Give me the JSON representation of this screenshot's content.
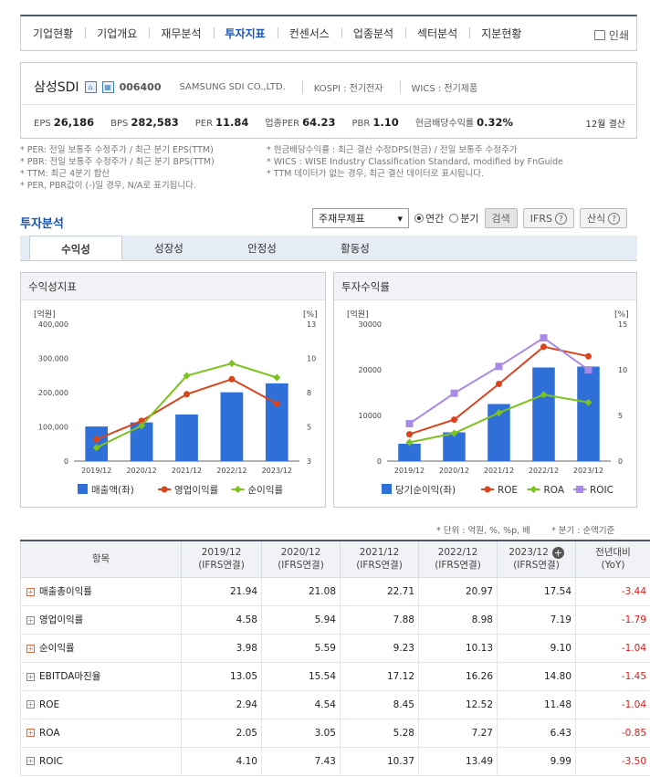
{
  "nav": {
    "items": [
      "기업현황",
      "기업개요",
      "재무분석",
      "투자지표",
      "컨센서스",
      "업종분석",
      "섹터분석",
      "지분현황"
    ],
    "active_index": 3,
    "print_label": "인쇄"
  },
  "company": {
    "name": "삼성SDI",
    "code": "006400",
    "english_name": "SAMSUNG SDI CO.,LTD.",
    "market": "KOSPI : 전기전자",
    "wics": "WICS : 전기제품",
    "metrics": [
      {
        "label": "EPS",
        "value": "26,186"
      },
      {
        "label": "BPS",
        "value": "282,583"
      },
      {
        "label": "PER",
        "value": "11.84"
      },
      {
        "label": "업종PER",
        "value": "64.23"
      },
      {
        "label": "PBR",
        "value": "1.10"
      },
      {
        "label": "현금배당수익률",
        "value": "0.32%"
      }
    ],
    "settlement": "12월 결산"
  },
  "notes_left": [
    "* PER: 전일 보통주 수정주가 / 최근 분기 EPS(TTM)",
    "* PBR: 전일 보통주 수정주가 / 최근 분기 BPS(TTM)",
    "* TTM: 최근 4분기 합산",
    "* PER, PBR값이 (-)일 경우, N/A로 표기됩니다."
  ],
  "notes_right": [
    "* 현금배당수익률 : 최근 결산 수정DPS(현금) / 전일 보통주 수정주가",
    "* WICS : WISE Industry Classification Standard, modified by FnGuide",
    "* TTM 데이터가 없는 경우, 최근 결산 데이터로 표시됩니다."
  ],
  "section_title": "투자분석",
  "controls": {
    "select_value": "주재무제표",
    "radio_annual": "연간",
    "radio_quarter": "분기",
    "search": "검색",
    "ifrs": "IFRS",
    "formula": "산식"
  },
  "tabs": [
    "수익성",
    "성장성",
    "안정성",
    "활동성"
  ],
  "chart_data": [
    {
      "type": "bar",
      "title": "수익성지표",
      "categories": [
        "2019/12",
        "2020/12",
        "2021/12",
        "2022/12",
        "2023/12"
      ],
      "y_left_label": "[억원]",
      "y_right_label": "[%]",
      "y_left_ticks": [
        "0",
        "100,000",
        "200,000",
        "300,000",
        "400,000"
      ],
      "y_right_ticks": [
        "3",
        "5",
        "8",
        "10",
        "13"
      ],
      "y_left_range": [
        0,
        400000
      ],
      "y_right_range": [
        3,
        13
      ],
      "bars": {
        "name": "매출액(좌)",
        "color": "#2f6fd8",
        "values": [
          101000,
          113000,
          136000,
          201000,
          227000
        ]
      },
      "lines": [
        {
          "name": "영업이익률",
          "color": "#d9441f",
          "values": [
            4.58,
            5.94,
            7.88,
            8.98,
            7.19
          ]
        },
        {
          "name": "순이익률",
          "color": "#7dc21e",
          "values": [
            3.98,
            5.59,
            9.23,
            10.13,
            9.1
          ]
        }
      ]
    },
    {
      "type": "bar",
      "title": "투자수익률",
      "categories": [
        "2019/12",
        "2020/12",
        "2021/12",
        "2022/12",
        "2023/12"
      ],
      "y_left_label": "[억원]",
      "y_right_label": "[%]",
      "y_left_ticks": [
        "0",
        "10000",
        "20000",
        "30000"
      ],
      "y_right_ticks": [
        "0",
        "5",
        "10",
        "15"
      ],
      "y_left_range": [
        0,
        30000
      ],
      "y_right_range": [
        0,
        15
      ],
      "bars": {
        "name": "당기순이익(좌)",
        "color": "#2f6fd8",
        "values": [
          3800,
          6300,
          12500,
          20500,
          20700
        ]
      },
      "lines": [
        {
          "name": "ROE",
          "color": "#d9441f",
          "values": [
            2.94,
            4.54,
            8.45,
            12.52,
            11.48
          ]
        },
        {
          "name": "ROA",
          "color": "#7dc21e",
          "values": [
            2.05,
            3.05,
            5.28,
            7.27,
            6.43
          ]
        },
        {
          "name": "ROIC",
          "color": "#a98ae6",
          "values": [
            4.1,
            7.43,
            10.37,
            13.49,
            9.99
          ]
        }
      ]
    }
  ],
  "unit_note": "* 단위 : 억원, %, %p, 배",
  "quarter_note": "* 분기 : 순액기준",
  "table": {
    "header_item": "항목",
    "columns": [
      {
        "year": "2019/12",
        "basis": "(IFRS연결)"
      },
      {
        "year": "2020/12",
        "basis": "(IFRS연결)"
      },
      {
        "year": "2021/12",
        "basis": "(IFRS연결)"
      },
      {
        "year": "2022/12",
        "basis": "(IFRS연결)"
      },
      {
        "year": "2023/12",
        "basis": "(IFRS연결)"
      }
    ],
    "yoy_header": "전년대비",
    "yoy_sub": "(YoY)",
    "rows": [
      {
        "label": "매출총이익률",
        "values": [
          "21.94",
          "21.08",
          "22.71",
          "20.97",
          "17.54"
        ],
        "yoy": "-3.44"
      },
      {
        "label": "영업이익률",
        "values": [
          "4.58",
          "5.94",
          "7.88",
          "8.98",
          "7.19"
        ],
        "yoy": "-1.79"
      },
      {
        "label": "순이익률",
        "values": [
          "3.98",
          "5.59",
          "9.23",
          "10.13",
          "9.10"
        ],
        "yoy": "-1.04"
      },
      {
        "label": "EBITDA마진율",
        "values": [
          "13.05",
          "15.54",
          "17.12",
          "16.26",
          "14.80"
        ],
        "yoy": "-1.45"
      },
      {
        "label": "ROE",
        "values": [
          "2.94",
          "4.54",
          "8.45",
          "12.52",
          "11.48"
        ],
        "yoy": "-1.04"
      },
      {
        "label": "ROA",
        "values": [
          "2.05",
          "3.05",
          "5.28",
          "7.27",
          "6.43"
        ],
        "yoy": "-0.85"
      },
      {
        "label": "ROIC",
        "values": [
          "4.10",
          "7.43",
          "10.37",
          "13.49",
          "9.99"
        ],
        "yoy": "-3.50"
      }
    ]
  }
}
